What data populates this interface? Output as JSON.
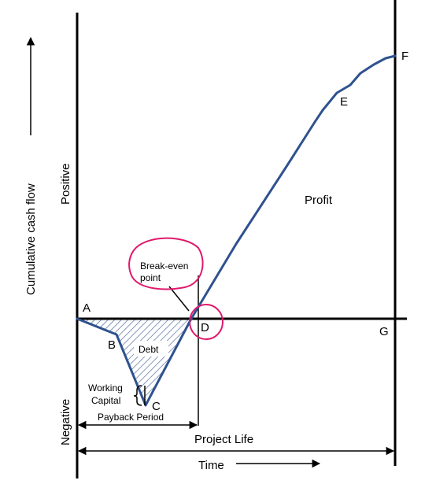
{
  "labels": {
    "point_a": "A",
    "point_b": "B",
    "point_c": "C",
    "point_d": "D",
    "point_e": "E",
    "point_f": "F",
    "point_g": "G",
    "profit": "Profit",
    "debt": "Debt",
    "breakeven_line1": "Break-even",
    "breakeven_line2": "point",
    "working_capital_line1": "Working",
    "working_capital_line2": "Capital",
    "payback_period": "Payback Period",
    "project_life": "Project Life",
    "time": "Time",
    "y_axis": "Cumulative cash flow",
    "positive": "Positive",
    "negative": "Negative"
  },
  "colors": {
    "curve": "#2f528f",
    "highlight": "#e0196c",
    "axis": "#000000"
  }
}
